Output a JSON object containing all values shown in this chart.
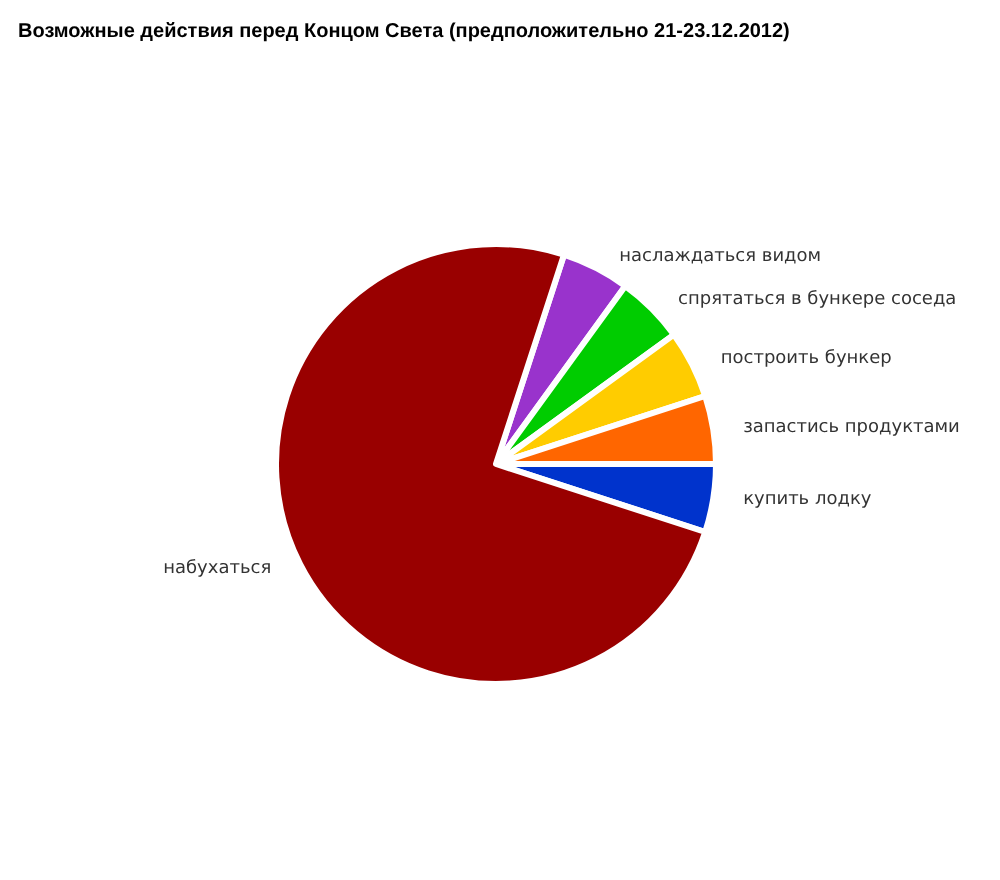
{
  "chart_data": {
    "type": "pie",
    "title": "Возможные действия перед Концом Света (предположительно 21-23.12.2012)",
    "categories": [
      "наслаждаться видом",
      "спрятаться в бункере соседа",
      "построить бункер",
      "запастись продуктами",
      "купить лодку",
      "набухаться"
    ],
    "values": [
      5,
      5,
      5,
      5,
      5,
      75
    ],
    "colors": [
      "#9933cc",
      "#00cc00",
      "#ffcc00",
      "#ff6600",
      "#0033cc",
      "#990000"
    ]
  }
}
